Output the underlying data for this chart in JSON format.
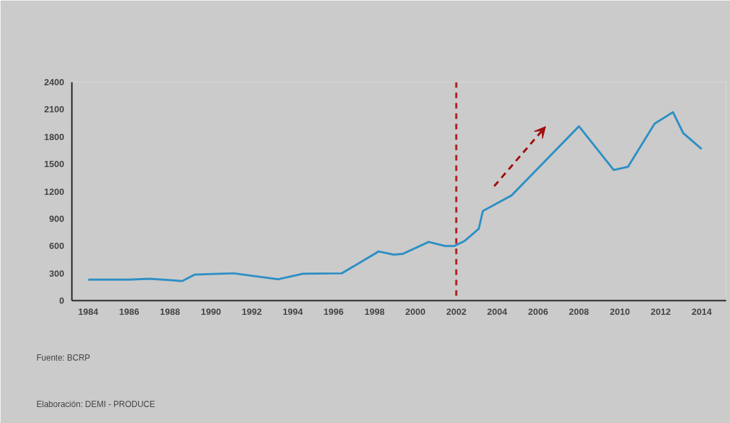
{
  "chart_data": {
    "type": "line",
    "x": [
      1984,
      1986,
      1987,
      1988.6,
      1989.2,
      1991.1,
      1993.3,
      1994.5,
      1996.4,
      1998.2,
      1998.95,
      1999.4,
      2000.65,
      2001.45,
      2001.9,
      2002.4,
      2003.1,
      2003.3,
      2004.7,
      2008.0,
      2009.7,
      2010.4,
      2011.7,
      2012.6,
      2013.1,
      2014.0
    ],
    "series": [
      {
        "color": "#2e8fc4",
        "values": [
          230,
          230,
          240,
          215,
          285,
          300,
          235,
          295,
          300,
          540,
          505,
          515,
          645,
          600,
          600,
          655,
          790,
          985,
          1155,
          1915,
          1435,
          1470,
          1945,
          2070,
          1840,
          1665
        ]
      }
    ],
    "xlim": [
      1983.2,
      2015.2
    ],
    "ylim": [
      0,
      2400
    ],
    "xticks": [
      1984,
      1986,
      1988,
      1990,
      1992,
      1994,
      1996,
      1998,
      2000,
      2002,
      2004,
      2006,
      2008,
      2010,
      2012,
      2014
    ],
    "yticks": [
      0,
      300,
      600,
      900,
      1200,
      1500,
      1800,
      2100,
      2400
    ],
    "ref_lines": [
      {
        "axis": "x",
        "value": 2002,
        "color": "#b01c1c",
        "line_style": "dashed"
      }
    ],
    "grid": false,
    "marker": "none",
    "line_style": "solid",
    "annotations": [
      "Fuente: BCRP",
      "Elaboración: DEMI - PRODUCE"
    ]
  }
}
